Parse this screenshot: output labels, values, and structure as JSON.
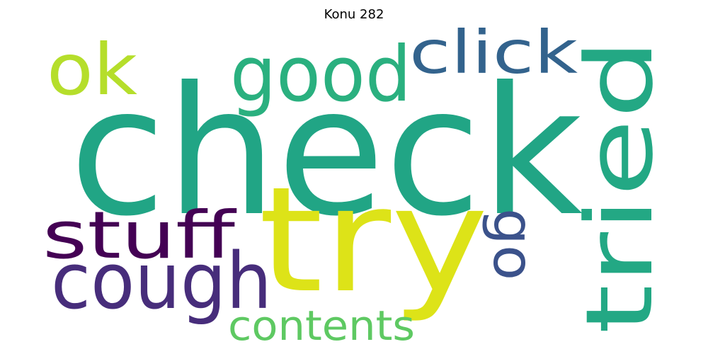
{
  "title": "Konu 282",
  "words": [
    {
      "text": "check",
      "color": "#21a585"
    },
    {
      "text": "try",
      "color": "#dde318"
    },
    {
      "text": "tried",
      "color": "#23a884"
    },
    {
      "text": "cough",
      "color": "#472d7b"
    },
    {
      "text": "stuff",
      "color": "#440154"
    },
    {
      "text": "good",
      "color": "#2ab07f"
    },
    {
      "text": "click",
      "color": "#33638d"
    },
    {
      "text": "ok",
      "color": "#b5de2b"
    },
    {
      "text": "go",
      "color": "#3b528b"
    },
    {
      "text": "contents",
      "color": "#5ec962"
    }
  ]
}
